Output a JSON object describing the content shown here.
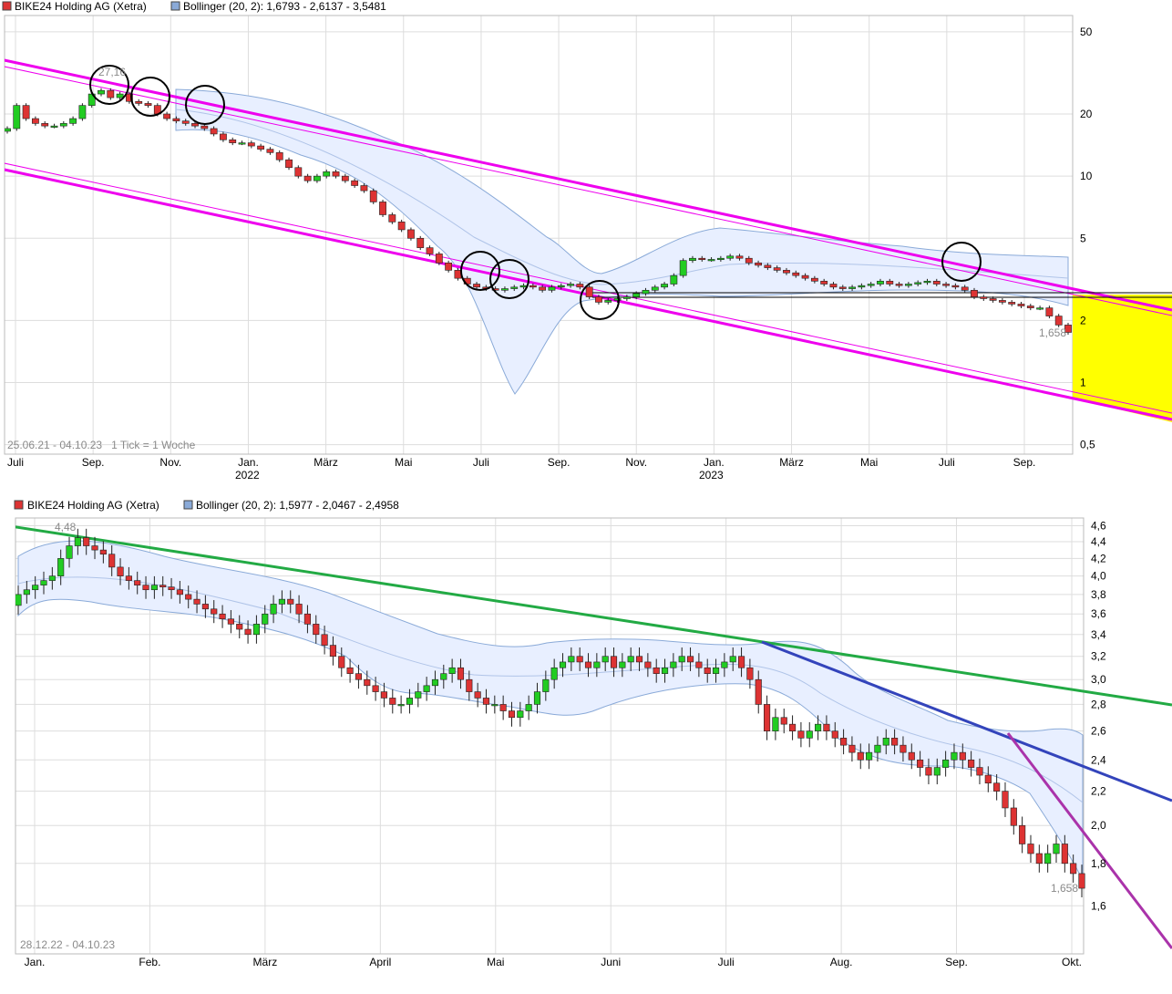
{
  "colors": {
    "up": "#22cc22",
    "down": "#dd3333",
    "band_fill": "#e8efff",
    "band_line": "#8aaad8",
    "magenta": "#ee00ee",
    "green": "#22aa44",
    "blue": "#3344bb",
    "purple": "#aa33aa",
    "yellow": "#ffff00",
    "grid": "#dddddd"
  },
  "chart_data": [
    {
      "type": "candlestick",
      "legend": [
        {
          "label": "BIKE24 Holding AG (Xetra)",
          "color": "#dd3333"
        },
        {
          "label": "Bollinger (20, 2): 1,6793 - 2,6137 - 3,5481",
          "color": "#8aaad8"
        }
      ],
      "range_label": "25.06.21 - 04.10.23   1 Tick = 1 Woche",
      "y_scale": "log",
      "ylim": [
        0.45,
        60
      ],
      "y_ticks": [
        {
          "v": 50,
          "label": "50"
        },
        {
          "v": 20,
          "label": "20"
        },
        {
          "v": 10,
          "label": "10"
        },
        {
          "v": 5,
          "label": "5"
        },
        {
          "v": 2,
          "label": "2"
        },
        {
          "v": 1,
          "label": "1"
        },
        {
          "v": 0.5,
          "label": "0,5"
        }
      ],
      "x_ticks": [
        "Juli",
        "Sep.",
        "Nov.",
        "Jan.",
        "März",
        "Mai",
        "Juli",
        "Sep.",
        "Nov.",
        "Jan.",
        "März",
        "Mai",
        "Juli",
        "Sep."
      ],
      "x_year_labels": [
        "2022",
        "2023"
      ],
      "annotations": [
        {
          "label": "27,16"
        },
        {
          "label": "1,658"
        }
      ],
      "series": [
        {
          "name": "BIKE24 Holding AG (Xetra)",
          "close": [
            17,
            22,
            19,
            18,
            17.5,
            17.5,
            18,
            19,
            22,
            25,
            26,
            24,
            25,
            23,
            22.5,
            22,
            20,
            19,
            18.5,
            18,
            17.5,
            17,
            16,
            15,
            14.5,
            14.5,
            14,
            13.5,
            13,
            12,
            11,
            10,
            9.5,
            10,
            10.5,
            10,
            9.5,
            9,
            8.5,
            7.5,
            6.5,
            6,
            5.5,
            5,
            4.5,
            4.2,
            3.8,
            3.5,
            3.2,
            3,
            2.9,
            2.85,
            2.8,
            2.85,
            2.9,
            2.95,
            2.9,
            2.8,
            2.9,
            2.95,
            3.0,
            2.9,
            2.6,
            2.45,
            2.5,
            2.55,
            2.6,
            2.7,
            2.8,
            2.9,
            3.0,
            3.3,
            3.9,
            4.0,
            3.95,
            3.95,
            4.0,
            4.1,
            4.0,
            3.8,
            3.7,
            3.6,
            3.5,
            3.4,
            3.3,
            3.2,
            3.1,
            3.0,
            2.9,
            2.85,
            2.9,
            2.95,
            3.0,
            3.1,
            3.0,
            2.95,
            3.0,
            3.05,
            3.1,
            3.0,
            2.95,
            2.9,
            2.8,
            2.6,
            2.55,
            2.5,
            2.45,
            2.4,
            2.35,
            2.3,
            2.3,
            2.1,
            1.9,
            1.75
          ]
        }
      ]
    },
    {
      "type": "candlestick",
      "legend": [
        {
          "label": "BIKE24 Holding AG (Xetra)",
          "color": "#dd3333"
        },
        {
          "label": "Bollinger (20, 2): 1,5977 - 2,0467 - 2,4958",
          "color": "#8aaad8"
        }
      ],
      "range_label": "28.12.22 - 04.10.23",
      "y_scale": "log",
      "ylim": [
        1.4,
        4.7
      ],
      "y_ticks": [
        {
          "v": 4.6,
          "label": "4,6"
        },
        {
          "v": 4.4,
          "label": "4,4"
        },
        {
          "v": 4.2,
          "label": "4,2"
        },
        {
          "v": 4.0,
          "label": "4,0"
        },
        {
          "v": 3.8,
          "label": "3,8"
        },
        {
          "v": 3.6,
          "label": "3,6"
        },
        {
          "v": 3.4,
          "label": "3,4"
        },
        {
          "v": 3.2,
          "label": "3,2"
        },
        {
          "v": 3.0,
          "label": "3,0"
        },
        {
          "v": 2.8,
          "label": "2,8"
        },
        {
          "v": 2.6,
          "label": "2,6"
        },
        {
          "v": 2.4,
          "label": "2,4"
        },
        {
          "v": 2.2,
          "label": "2,2"
        },
        {
          "v": 2.0,
          "label": "2,0"
        },
        {
          "v": 1.8,
          "label": "1,8"
        },
        {
          "v": 1.6,
          "label": "1,6"
        }
      ],
      "x_ticks": [
        "Jan.",
        "Feb.",
        "März",
        "April",
        "Mai",
        "Juni",
        "Juli",
        "Aug.",
        "Sep.",
        "Okt."
      ],
      "annotations": [
        {
          "label": "4,48"
        },
        {
          "label": "1,658"
        }
      ],
      "series": [
        {
          "name": "BIKE24 Holding AG (Xetra)",
          "close": [
            3.8,
            3.85,
            3.9,
            3.95,
            4.0,
            4.2,
            4.35,
            4.45,
            4.35,
            4.3,
            4.25,
            4.1,
            4.0,
            3.95,
            3.9,
            3.85,
            3.9,
            3.88,
            3.85,
            3.8,
            3.75,
            3.7,
            3.65,
            3.6,
            3.55,
            3.5,
            3.45,
            3.4,
            3.5,
            3.6,
            3.7,
            3.75,
            3.7,
            3.6,
            3.5,
            3.4,
            3.3,
            3.2,
            3.1,
            3.05,
            3.0,
            2.95,
            2.9,
            2.85,
            2.8,
            2.8,
            2.85,
            2.9,
            2.95,
            3.0,
            3.05,
            3.1,
            3.0,
            2.9,
            2.85,
            2.8,
            2.8,
            2.75,
            2.7,
            2.75,
            2.8,
            2.9,
            3.0,
            3.1,
            3.15,
            3.2,
            3.15,
            3.1,
            3.15,
            3.2,
            3.1,
            3.15,
            3.2,
            3.15,
            3.1,
            3.05,
            3.1,
            3.15,
            3.2,
            3.15,
            3.1,
            3.05,
            3.1,
            3.15,
            3.2,
            3.1,
            3.0,
            2.8,
            2.6,
            2.7,
            2.65,
            2.6,
            2.55,
            2.6,
            2.65,
            2.6,
            2.55,
            2.5,
            2.45,
            2.4,
            2.45,
            2.5,
            2.55,
            2.5,
            2.45,
            2.4,
            2.35,
            2.3,
            2.35,
            2.4,
            2.45,
            2.4,
            2.35,
            2.3,
            2.25,
            2.2,
            2.1,
            2.0,
            1.9,
            1.85,
            1.8,
            1.85,
            1.9,
            1.8,
            1.75,
            1.68
          ]
        }
      ]
    }
  ]
}
